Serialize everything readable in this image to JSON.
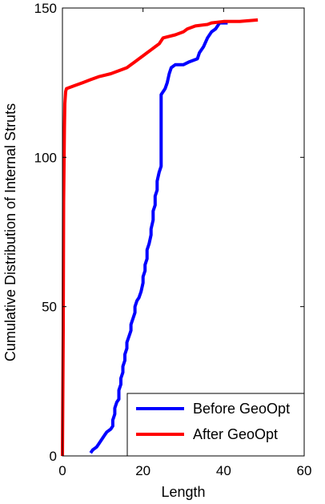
{
  "chart_data": {
    "type": "line",
    "title": "",
    "xlabel": "Length",
    "ylabel": "Cumulative Distribution of Internal Struts",
    "xlim": [
      0,
      60
    ],
    "ylim": [
      0,
      150
    ],
    "xticks": [
      0,
      20,
      40,
      60
    ],
    "yticks": [
      0,
      50,
      100,
      150
    ],
    "grid": false,
    "legend_position": "bottom-right",
    "series": [
      {
        "name": "Before GeoOpt",
        "color": "#0000ff",
        "points": [
          [
            7,
            1
          ],
          [
            7.5,
            2
          ],
          [
            8.5,
            3
          ],
          [
            9,
            4
          ],
          [
            9.5,
            5
          ],
          [
            10,
            6
          ],
          [
            10.5,
            7
          ],
          [
            11,
            8
          ],
          [
            12,
            9
          ],
          [
            12.5,
            10
          ],
          [
            12.5,
            12
          ],
          [
            13,
            14
          ],
          [
            13,
            16
          ],
          [
            13.5,
            18
          ],
          [
            14,
            19
          ],
          [
            14,
            22
          ],
          [
            14.5,
            24
          ],
          [
            14.5,
            26
          ],
          [
            15,
            28
          ],
          [
            15,
            30
          ],
          [
            15.5,
            32
          ],
          [
            15.5,
            34
          ],
          [
            16,
            36
          ],
          [
            16,
            38
          ],
          [
            16.5,
            40
          ],
          [
            17,
            42
          ],
          [
            17,
            44
          ],
          [
            17.5,
            46
          ],
          [
            18,
            48
          ],
          [
            18,
            50
          ],
          [
            18.5,
            52
          ],
          [
            19,
            53
          ],
          [
            19.5,
            55
          ],
          [
            20,
            58
          ],
          [
            20,
            60
          ],
          [
            20.5,
            62
          ],
          [
            20.5,
            64
          ],
          [
            21,
            66
          ],
          [
            21,
            69
          ],
          [
            21.5,
            71
          ],
          [
            22,
            74
          ],
          [
            22,
            76
          ],
          [
            22.5,
            79
          ],
          [
            22.5,
            82
          ],
          [
            23,
            84
          ],
          [
            23,
            87
          ],
          [
            23.5,
            89
          ],
          [
            23.5,
            92
          ],
          [
            24,
            95
          ],
          [
            24.5,
            97
          ],
          [
            24.5,
            110
          ],
          [
            24.5,
            121
          ],
          [
            25.5,
            123
          ],
          [
            26,
            125
          ],
          [
            26.5,
            128
          ],
          [
            27,
            130
          ],
          [
            28,
            131
          ],
          [
            30,
            131
          ],
          [
            31.5,
            132
          ],
          [
            33.5,
            133
          ],
          [
            34,
            135
          ],
          [
            35,
            137
          ],
          [
            36,
            140
          ],
          [
            37,
            142
          ],
          [
            38,
            143
          ],
          [
            38.5,
            144
          ],
          [
            39,
            145
          ],
          [
            41,
            145
          ]
        ]
      },
      {
        "name": "After GeoOpt",
        "color": "#ff0000",
        "points": [
          [
            0,
            0
          ],
          [
            0.2,
            42
          ],
          [
            0.3,
            85
          ],
          [
            0.5,
            110
          ],
          [
            0.6,
            118
          ],
          [
            0.8,
            122
          ],
          [
            1,
            123
          ],
          [
            3,
            124
          ],
          [
            5,
            125
          ],
          [
            7,
            126
          ],
          [
            9,
            127
          ],
          [
            12,
            128
          ],
          [
            14,
            129
          ],
          [
            16,
            130
          ],
          [
            17,
            131
          ],
          [
            18,
            132
          ],
          [
            19,
            133
          ],
          [
            20,
            134
          ],
          [
            21,
            135
          ],
          [
            22,
            136
          ],
          [
            23,
            137
          ],
          [
            24,
            138
          ],
          [
            25,
            140
          ],
          [
            28,
            141
          ],
          [
            30,
            142
          ],
          [
            31,
            143
          ],
          [
            33,
            144
          ],
          [
            36,
            144.5
          ],
          [
            37,
            145
          ],
          [
            40,
            145.5
          ],
          [
            44,
            145.5
          ],
          [
            48.5,
            146
          ]
        ]
      }
    ]
  }
}
